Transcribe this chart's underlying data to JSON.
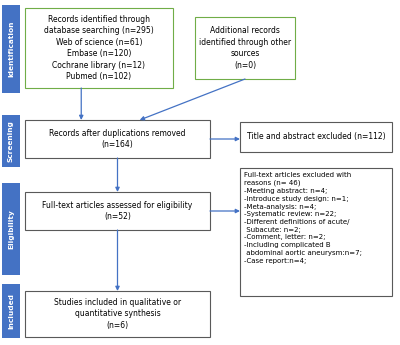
{
  "background_color": "#ffffff",
  "sidebar_color": "#4472c4",
  "sidebar_labels": [
    "Identification",
    "Screening",
    "Eligibility",
    "Included"
  ],
  "box1_text": "Records identified through\ndatabase searching (n=295)\nWeb of science (n=61)\nEmbase (n=120)\nCochrane library (n=12)\nPubmed (n=102)",
  "box2_text": "Additional records\nidentified through other\nsources\n(n=0)",
  "box3_text": "Records after duplications removed\n(n=164)",
  "box4_text": "Title and abstract excluded (n=112)",
  "box5_text": "Full-text articles assessed for eligibility\n(n=52)",
  "box6_text": "Full-text articles excluded with\nreasons (n= 46)\n-Meeting abstract: n=4;\n-Introduce study design: n=1;\n-Meta-analysis: n=4;\n-Systematic review: n=22;\n-Different definitions of acute/\n Subacute: n=2;\n-Comment, letter: n=2;\n-Including complicated B\n abdominal aortic aneurysm:n=7;\n-Case report:n=4;",
  "box7_text": "Studies included in qualitative or\nquantitative synthesis\n(n=6)",
  "green_border": "#70ad47",
  "dark_border": "#595959",
  "arrow_color": "#4472c4",
  "font_size": 5.5,
  "sidebar_font_size": 5.3
}
